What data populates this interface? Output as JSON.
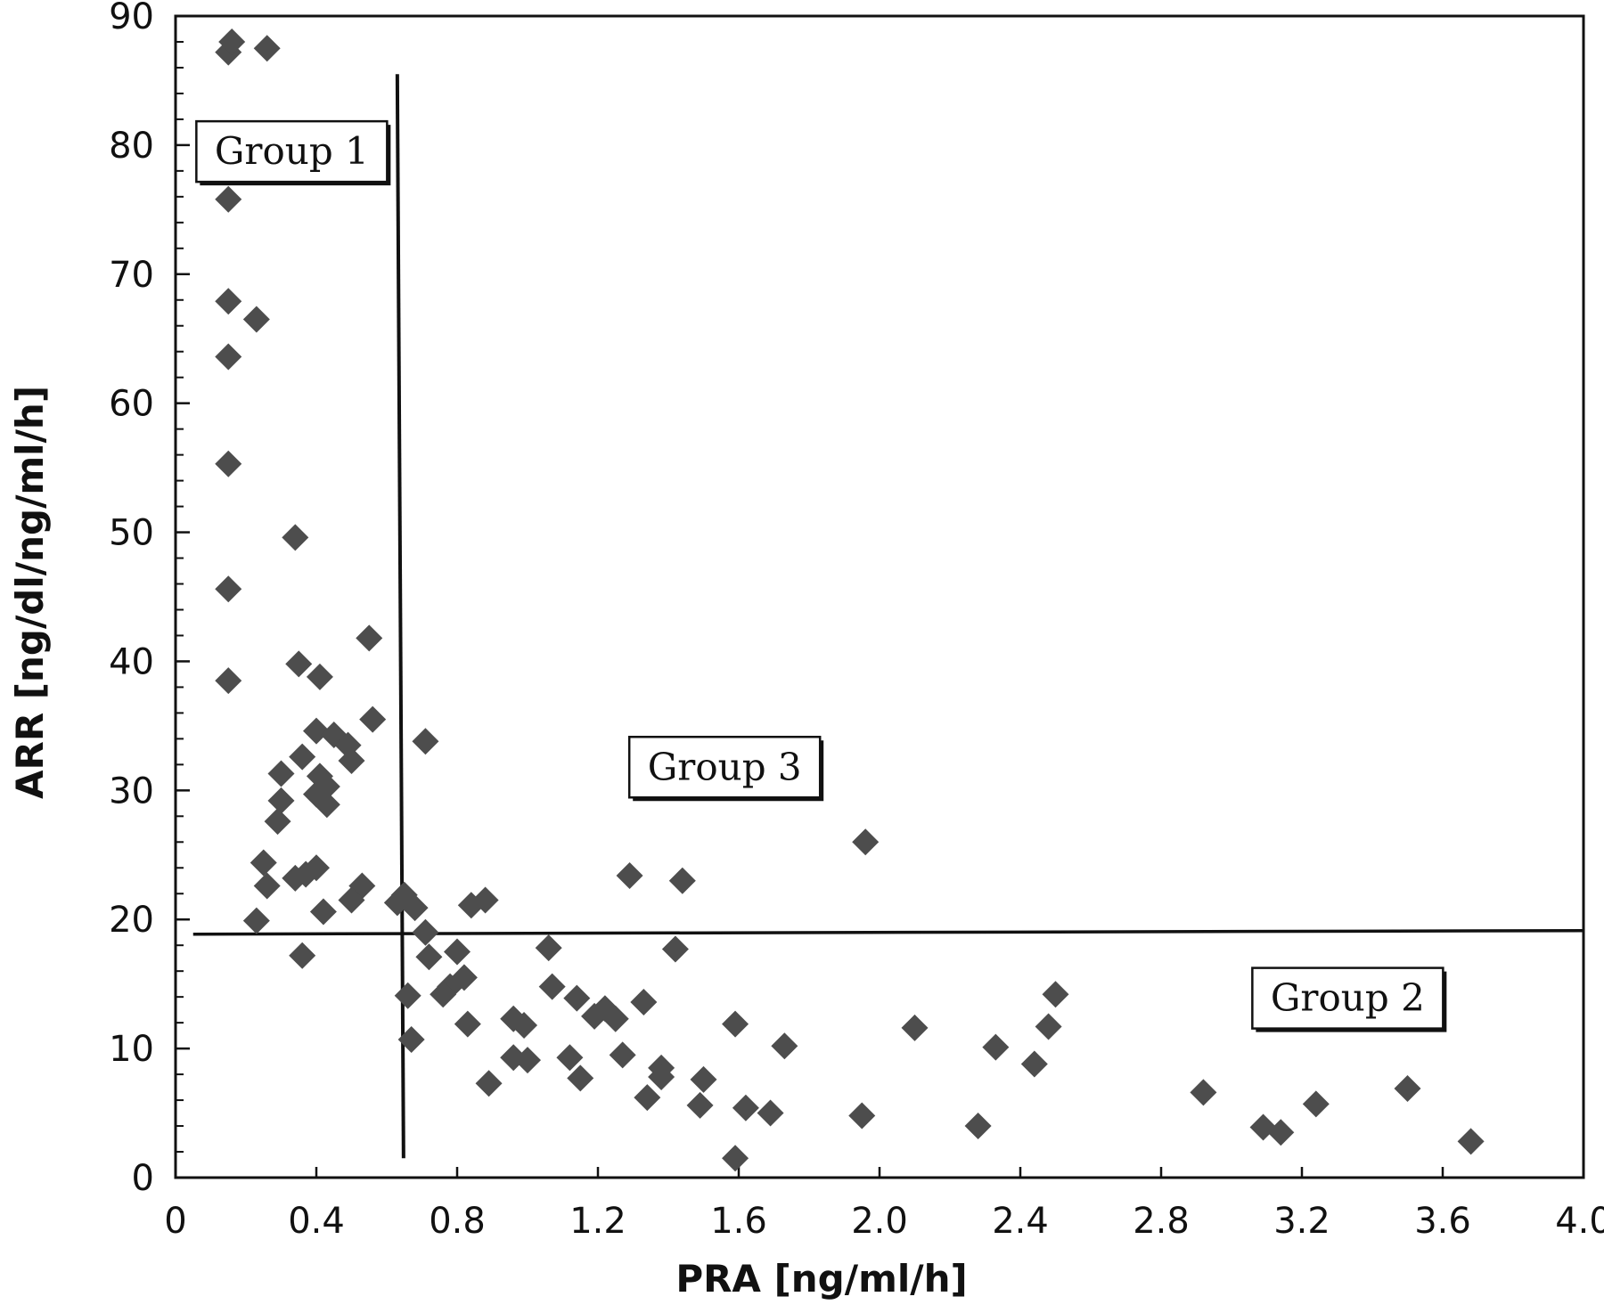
{
  "chart_data": {
    "type": "scatter",
    "title": "",
    "xlabel": "PRA [ng/ml/h]",
    "ylabel": "ARR [ng/dl/ng/ml/h]",
    "xlim": [
      0,
      4.0
    ],
    "ylim": [
      0,
      90
    ],
    "x_ticks": [
      "0",
      "0.4",
      "0.8",
      "1.2",
      "1.6",
      "2.0",
      "2.4",
      "2.8",
      "3.2",
      "3.6",
      "4.0"
    ],
    "y_ticks": [
      "0",
      "10",
      "20",
      "30",
      "40",
      "50",
      "60",
      "70",
      "80",
      "90"
    ],
    "grid": false,
    "legend": "none",
    "marker": "diamond",
    "marker_color": "#4d4d4d",
    "series": [
      {
        "points": [
          [
            0.15,
            87.2
          ],
          [
            0.16,
            88.0
          ],
          [
            0.26,
            87.5
          ],
          [
            0.15,
            75.8
          ],
          [
            0.15,
            67.9
          ],
          [
            0.23,
            66.5
          ],
          [
            0.15,
            63.6
          ],
          [
            0.15,
            55.3
          ],
          [
            0.34,
            49.6
          ],
          [
            0.15,
            45.6
          ],
          [
            0.55,
            41.8
          ],
          [
            0.35,
            39.8
          ],
          [
            0.15,
            38.5
          ],
          [
            0.41,
            38.8
          ],
          [
            0.56,
            35.5
          ],
          [
            0.71,
            33.8
          ],
          [
            0.4,
            34.6
          ],
          [
            0.45,
            34.3
          ],
          [
            0.49,
            33.5
          ],
          [
            0.5,
            32.3
          ],
          [
            0.36,
            32.6
          ],
          [
            0.3,
            31.3
          ],
          [
            0.41,
            31.1
          ],
          [
            0.43,
            30.3
          ],
          [
            0.4,
            29.7
          ],
          [
            0.3,
            29.2
          ],
          [
            0.43,
            28.9
          ],
          [
            0.29,
            27.6
          ],
          [
            0.25,
            24.4
          ],
          [
            0.4,
            24.0
          ],
          [
            0.37,
            23.5
          ],
          [
            0.34,
            23.2
          ],
          [
            0.26,
            22.6
          ],
          [
            0.53,
            22.6
          ],
          [
            0.65,
            21.9
          ],
          [
            0.5,
            21.5
          ],
          [
            0.63,
            21.3
          ],
          [
            0.68,
            20.9
          ],
          [
            0.42,
            20.6
          ],
          [
            0.23,
            19.9
          ],
          [
            0.84,
            21.1
          ],
          [
            0.88,
            21.5
          ],
          [
            1.96,
            26.0
          ],
          [
            1.29,
            23.4
          ],
          [
            1.44,
            23.0
          ],
          [
            0.71,
            19.0
          ],
          [
            0.36,
            17.2
          ],
          [
            0.72,
            17.1
          ],
          [
            0.8,
            17.5
          ],
          [
            1.06,
            17.8
          ],
          [
            1.42,
            17.7
          ],
          [
            0.82,
            15.5
          ],
          [
            0.78,
            14.8
          ],
          [
            0.76,
            14.2
          ],
          [
            1.07,
            14.8
          ],
          [
            0.66,
            14.1
          ],
          [
            1.14,
            13.9
          ],
          [
            1.33,
            13.6
          ],
          [
            1.22,
            13.1
          ],
          [
            1.19,
            12.5
          ],
          [
            1.25,
            12.3
          ],
          [
            2.5,
            14.2
          ],
          [
            0.83,
            11.9
          ],
          [
            0.96,
            12.3
          ],
          [
            0.99,
            11.8
          ],
          [
            1.59,
            11.9
          ],
          [
            2.1,
            11.6
          ],
          [
            2.48,
            11.7
          ],
          [
            0.67,
            10.7
          ],
          [
            1.73,
            10.2
          ],
          [
            2.33,
            10.1
          ],
          [
            0.96,
            9.3
          ],
          [
            1.0,
            9.1
          ],
          [
            1.12,
            9.3
          ],
          [
            1.27,
            9.5
          ],
          [
            1.38,
            8.5
          ],
          [
            2.44,
            8.8
          ],
          [
            1.38,
            7.8
          ],
          [
            1.15,
            7.7
          ],
          [
            0.89,
            7.3
          ],
          [
            1.5,
            7.6
          ],
          [
            1.34,
            6.2
          ],
          [
            2.92,
            6.6
          ],
          [
            3.5,
            6.9
          ],
          [
            1.49,
            5.6
          ],
          [
            1.62,
            5.4
          ],
          [
            1.69,
            5.0
          ],
          [
            3.24,
            5.7
          ],
          [
            1.95,
            4.8
          ],
          [
            2.28,
            4.0
          ],
          [
            3.09,
            3.9
          ],
          [
            3.14,
            3.5
          ],
          [
            3.68,
            2.8
          ],
          [
            1.59,
            1.5
          ]
        ]
      }
    ],
    "reference_lines": [
      {
        "orientation": "vertical",
        "x": 0.63,
        "y_range": [
          1.5,
          85.5
        ]
      },
      {
        "orientation": "horizontal",
        "y": 19.0,
        "x_range": [
          0.05,
          4.0
        ]
      }
    ],
    "annotations": [
      {
        "text": "Group 1",
        "x": 0.33,
        "y": 79.5
      },
      {
        "text": "Group 3",
        "x": 1.56,
        "y": 31.8
      },
      {
        "text": "Group 2",
        "x": 3.33,
        "y": 13.9
      }
    ]
  }
}
